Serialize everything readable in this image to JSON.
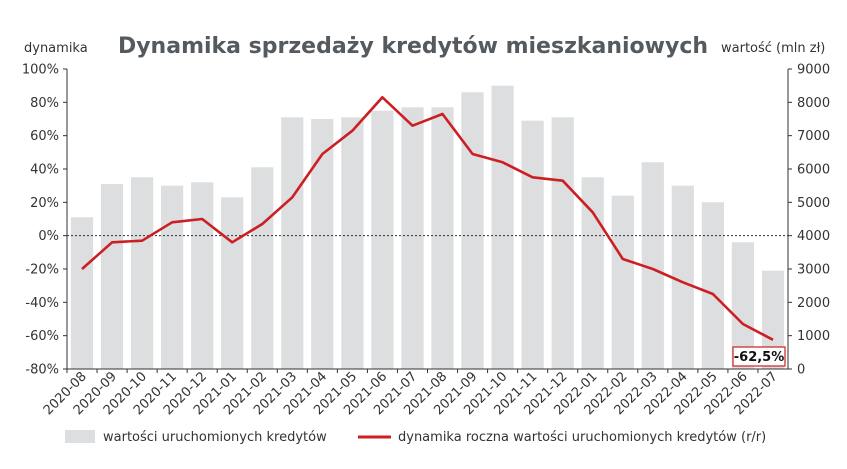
{
  "chart_data": {
    "type": "bar+line",
    "title": "Dynamika sprzedaży kredytów mieszkaniowych",
    "ylabel_left": "dynamika",
    "ylabel_right": "wartość (mln zł)",
    "categories": [
      "2020-08",
      "2020-09",
      "2020-10",
      "2020-11",
      "2020-12",
      "2021-01",
      "2021-02",
      "2021-03",
      "2021-04",
      "2021-05",
      "2021-06",
      "2021-07",
      "2021-08",
      "2021-09",
      "2021-10",
      "2021-11",
      "2021-12",
      "2022-01",
      "2022-02",
      "2022-03",
      "2022-04",
      "2022-05",
      "2022-06",
      "2022-07"
    ],
    "bars": {
      "name": "wartości uruchomionych kredytów",
      "axis": "right",
      "color": "#dcdedf",
      "values": [
        4550,
        5550,
        5750,
        5500,
        5600,
        5150,
        6050,
        7550,
        7500,
        7550,
        7750,
        7850,
        7850,
        8300,
        8500,
        7450,
        7550,
        5750,
        5200,
        6200,
        5500,
        5000,
        3800,
        2950
      ]
    },
    "line": {
      "name": "dynamika roczna wartości uruchomionych kredytów (r/r)",
      "axis": "left",
      "color": "#cc1f24",
      "values": [
        -20,
        -4,
        -3,
        8,
        10,
        -4,
        7,
        23,
        49,
        63,
        83,
        66,
        73,
        49,
        44,
        35,
        33,
        14,
        -14,
        -20,
        -28,
        -35,
        -53,
        -62.5
      ]
    },
    "y_left": {
      "range": [
        -80,
        100
      ],
      "ticks": [
        "-80%",
        "-60%",
        "-40%",
        "-20%",
        "0%",
        "20%",
        "40%",
        "60%",
        "80%",
        "100%"
      ]
    },
    "y_right": {
      "range": [
        0,
        9000
      ],
      "ticks": [
        "0",
        "1000",
        "2000",
        "3000",
        "4000",
        "5000",
        "6000",
        "7000",
        "8000",
        "9000"
      ]
    },
    "annotation": {
      "text": "-62,5%",
      "index": 23
    },
    "legend_position": "bottom",
    "zero_line": "dotted"
  }
}
